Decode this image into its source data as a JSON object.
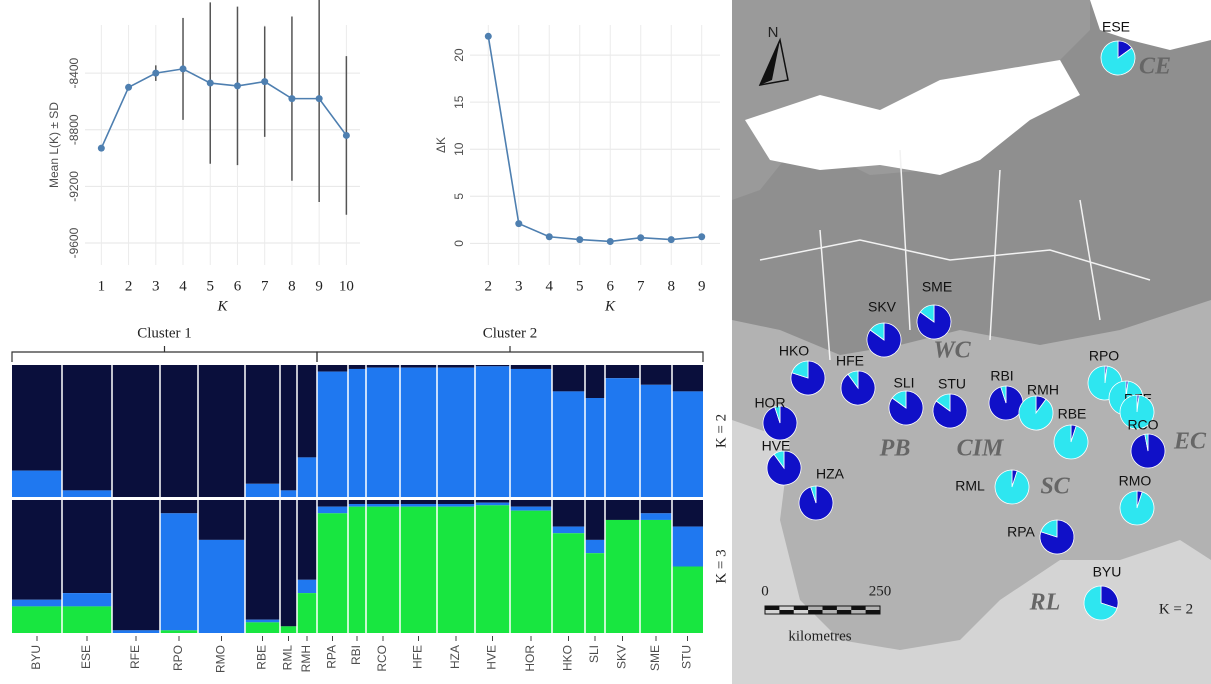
{
  "chart_data": [
    {
      "type": "line",
      "ylabel": "Mean L(K) ± SD",
      "xlabel": "K",
      "x": [
        1,
        2,
        3,
        4,
        5,
        6,
        7,
        8,
        9,
        10
      ],
      "values": [
        -8930,
        -8500,
        -8400,
        -8370,
        -8470,
        -8490,
        -8460,
        -8580,
        -8580,
        -8840
      ],
      "errors": [
        0,
        20,
        55,
        360,
        570,
        560,
        390,
        580,
        730,
        560
      ],
      "xlim": [
        0.4,
        10.5
      ],
      "ylim": [
        -9755,
        -8060
      ],
      "xticks": [
        1,
        2,
        3,
        4,
        5,
        6,
        7,
        8,
        9,
        10
      ],
      "yticks": [
        -9600,
        -9200,
        -8800,
        -8400
      ],
      "color": "#4e7fb0",
      "grid": true
    },
    {
      "type": "line",
      "ylabel": "ΔK",
      "xlabel": "K",
      "x": [
        2,
        3,
        4,
        5,
        6,
        7,
        8,
        9
      ],
      "values": [
        22,
        2.1,
        0.7,
        0.4,
        0.2,
        0.6,
        0.4,
        0.7
      ],
      "xlim": [
        1.4,
        9.6
      ],
      "ylim": [
        -2.3,
        23.2
      ],
      "xticks": [
        2,
        3,
        4,
        5,
        6,
        7,
        8,
        9
      ],
      "yticks": [
        0,
        5,
        10,
        15,
        20
      ],
      "color": "#4e7fb0",
      "grid": true
    },
    {
      "type": "structure",
      "groups": [
        "Cluster 1",
        "Cluster 2"
      ],
      "categories": [
        "BYU",
        "ESE",
        "RFE",
        "RPO",
        "RMO",
        "RBE",
        "RML",
        "RMH",
        "RPA",
        "RBI",
        "RCO",
        "HFE",
        "HZA",
        "HVE",
        "HOR",
        "HKO",
        "SLI",
        "SKV",
        "SME",
        "STU"
      ],
      "panels": [
        {
          "label": "K = 2",
          "series": [
            {
              "color": "#0a0f3c",
              "values": [
                0.8,
                0.95,
                1.0,
                1.0,
                1.0,
                0.9,
                0.95,
                0.7,
                0.05,
                0.03,
                0.02,
                0.02,
                0.02,
                0.01,
                0.03,
                0.2,
                0.25,
                0.1,
                0.15,
                0.2
              ]
            },
            {
              "color": "#1f78f0",
              "values": [
                0.2,
                0.05,
                0.0,
                0.0,
                0.0,
                0.1,
                0.05,
                0.3,
                0.95,
                0.97,
                0.98,
                0.98,
                0.98,
                0.99,
                0.97,
                0.8,
                0.75,
                0.9,
                0.85,
                0.8
              ]
            }
          ]
        },
        {
          "label": "K = 3",
          "series": [
            {
              "color": "#0a0f3c",
              "values": [
                0.75,
                0.7,
                0.98,
                0.1,
                0.3,
                0.9,
                0.95,
                0.6,
                0.05,
                0.03,
                0.03,
                0.03,
                0.03,
                0.02,
                0.05,
                0.2,
                0.3,
                0.15,
                0.1,
                0.2
              ]
            },
            {
              "color": "#1f78f0",
              "values": [
                0.05,
                0.1,
                0.02,
                0.88,
                0.7,
                0.02,
                0.0,
                0.1,
                0.05,
                0.02,
                0.02,
                0.02,
                0.02,
                0.02,
                0.03,
                0.05,
                0.1,
                0.0,
                0.05,
                0.3
              ]
            },
            {
              "color": "#18e640",
              "values": [
                0.2,
                0.2,
                0.0,
                0.02,
                0.0,
                0.08,
                0.05,
                0.3,
                0.9,
                0.95,
                0.95,
                0.95,
                0.95,
                0.96,
                0.92,
                0.75,
                0.6,
                0.85,
                0.85,
                0.5
              ]
            }
          ]
        }
      ]
    },
    {
      "type": "map-pies",
      "title": "K = 2",
      "north": "N",
      "colors": [
        "#1010c8",
        "#2ee6f0"
      ],
      "pies": [
        {
          "label": "ESE",
          "values": [
            15,
            85
          ]
        },
        {
          "label": "SME",
          "values": [
            85,
            15
          ]
        },
        {
          "label": "SKV",
          "values": [
            85,
            15
          ]
        },
        {
          "label": "HKO",
          "values": [
            80,
            20
          ]
        },
        {
          "label": "HFE",
          "values": [
            90,
            10
          ]
        },
        {
          "label": "SLI",
          "values": [
            85,
            15
          ]
        },
        {
          "label": "STU",
          "values": [
            85,
            15
          ]
        },
        {
          "label": "RBI",
          "values": [
            95,
            5
          ]
        },
        {
          "label": "RMH",
          "values": [
            10,
            90
          ]
        },
        {
          "label": "RPO",
          "values": [
            2,
            98
          ]
        },
        {
          "label": "RFE",
          "values": [
            2,
            98
          ]
        },
        {
          "label": "RCO",
          "values": [
            2,
            98
          ]
        },
        {
          "label": "RBE",
          "values": [
            5,
            95
          ]
        },
        {
          "label": null,
          "values": [
            97,
            3
          ]
        },
        {
          "label": "HOR",
          "values": [
            95,
            5
          ]
        },
        {
          "label": "HVE",
          "values": [
            90,
            10
          ]
        },
        {
          "label": "HZA",
          "values": [
            95,
            5
          ]
        },
        {
          "label": "RML",
          "values": [
            5,
            95
          ]
        },
        {
          "label": "RMO",
          "values": [
            5,
            95
          ]
        },
        {
          "label": "RPA",
          "values": [
            80,
            20
          ]
        },
        {
          "label": "BYU",
          "values": [
            30,
            70
          ]
        }
      ],
      "regions": [
        "CE",
        "WC",
        "PB",
        "CIM",
        "SC",
        "EC",
        "RL"
      ],
      "scale": {
        "ticks": [
          0,
          250
        ],
        "unit": "kilometres"
      }
    }
  ]
}
